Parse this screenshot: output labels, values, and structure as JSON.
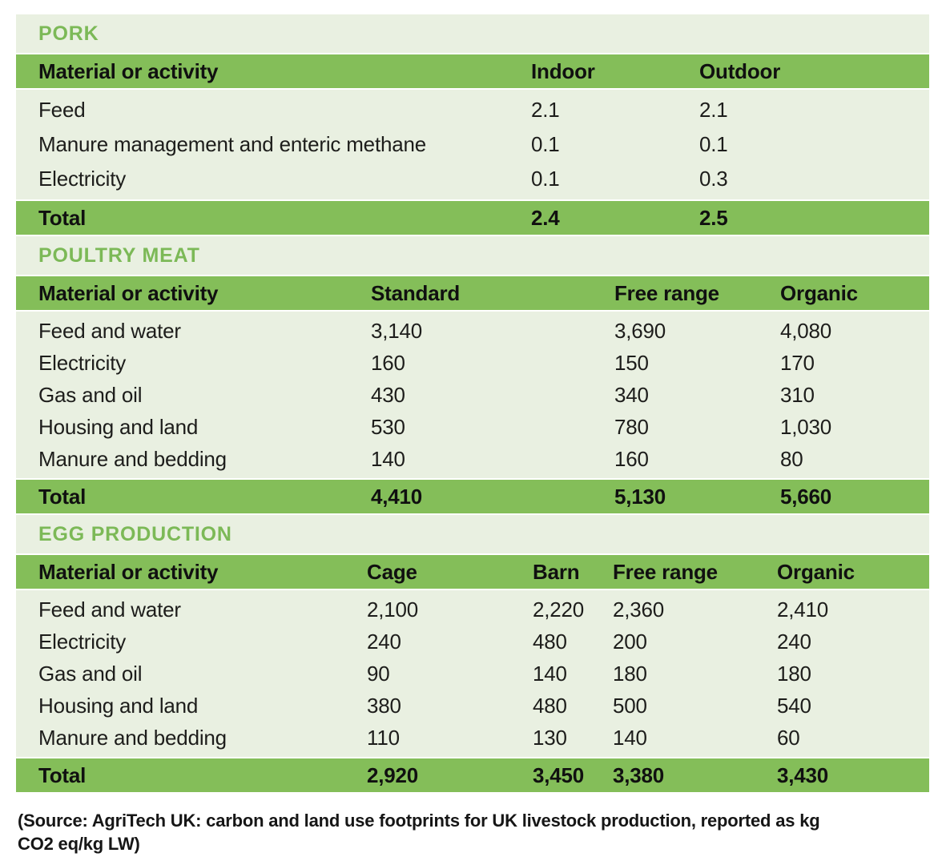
{
  "colors": {
    "band_green": "#84BE59",
    "light_green": "#E9F0E1",
    "title_green": "#7CB957",
    "text_dark": "#1d1d1b"
  },
  "sections": [
    {
      "title": "PORK",
      "columns": [
        "Material or activity",
        "Indoor",
        "Outdoor"
      ],
      "rows": [
        {
          "label": "Feed",
          "values": [
            "2.1",
            "2.1"
          ]
        },
        {
          "label": "Manure management and enteric methane",
          "values": [
            "0.1",
            "0.1"
          ]
        },
        {
          "label": "Electricity",
          "values": [
            "0.1",
            "0.3"
          ]
        }
      ],
      "total": {
        "label": "Total",
        "values": [
          "2.4",
          "2.5"
        ]
      }
    },
    {
      "title": "POULTRY MEAT",
      "columns": [
        "Material or activity",
        "Standard",
        "Free range",
        "Organic"
      ],
      "rows": [
        {
          "label": "Feed and water",
          "values": [
            "3,140",
            "3,690",
            "4,080"
          ]
        },
        {
          "label": "Electricity",
          "values": [
            "160",
            "150",
            "170"
          ]
        },
        {
          "label": "Gas and oil",
          "values": [
            "430",
            "340",
            "310"
          ]
        },
        {
          "label": "Housing and land",
          "values": [
            "530",
            "780",
            "1,030"
          ]
        },
        {
          "label": "Manure and bedding",
          "values": [
            "140",
            "160",
            "80"
          ]
        }
      ],
      "total": {
        "label": "Total",
        "values": [
          "4,410",
          "5,130",
          "5,660"
        ]
      }
    },
    {
      "title": "EGG PRODUCTION",
      "columns": [
        "Material or activity",
        "Cage",
        "Barn",
        "Free range",
        "Organic"
      ],
      "rows": [
        {
          "label": "Feed and water",
          "values": [
            "2,100",
            "2,220",
            "2,360",
            "2,410"
          ]
        },
        {
          "label": "Electricity",
          "values": [
            "240",
            "480",
            "200",
            "240"
          ]
        },
        {
          "label": "Gas and oil",
          "values": [
            "90",
            "140",
            "180",
            "180"
          ]
        },
        {
          "label": "Housing and land",
          "values": [
            "380",
            "480",
            "500",
            "540"
          ]
        },
        {
          "label": "Manure and bedding",
          "values": [
            "110",
            "130",
            "140",
            "60"
          ]
        }
      ],
      "total": {
        "label": "Total",
        "values": [
          "2,920",
          "3,450",
          "3,380",
          "3,430"
        ]
      }
    }
  ],
  "source_note": "(Source: AgriTech UK: carbon and land use footprints for UK livestock production, reported as kg CO2 eq/kg LW)",
  "chart_data": [
    {
      "type": "table",
      "title": "PORK",
      "units": "kg CO2 eq/kg LW",
      "columns": [
        "Material or activity",
        "Indoor",
        "Outdoor"
      ],
      "rows": [
        [
          "Feed",
          2.1,
          2.1
        ],
        [
          "Manure management and enteric methane",
          0.1,
          0.1
        ],
        [
          "Electricity",
          0.1,
          0.3
        ],
        [
          "Total",
          2.4,
          2.5
        ]
      ]
    },
    {
      "type": "table",
      "title": "POULTRY MEAT",
      "units": "kg CO2 eq/kg LW",
      "columns": [
        "Material or activity",
        "Standard",
        "Free range",
        "Organic"
      ],
      "rows": [
        [
          "Feed and water",
          3140,
          3690,
          4080
        ],
        [
          "Electricity",
          160,
          150,
          170
        ],
        [
          "Gas and oil",
          430,
          340,
          310
        ],
        [
          "Housing and land",
          530,
          780,
          1030
        ],
        [
          "Manure and bedding",
          140,
          160,
          80
        ],
        [
          "Total",
          4410,
          5130,
          5660
        ]
      ]
    },
    {
      "type": "table",
      "title": "EGG PRODUCTION",
      "units": "kg CO2 eq/kg LW",
      "columns": [
        "Material or activity",
        "Cage",
        "Barn",
        "Free range",
        "Organic"
      ],
      "rows": [
        [
          "Feed and water",
          2100,
          2220,
          2360,
          2410
        ],
        [
          "Electricity",
          240,
          480,
          200,
          240
        ],
        [
          "Gas and oil",
          90,
          140,
          180,
          180
        ],
        [
          "Housing and land",
          380,
          480,
          500,
          540
        ],
        [
          "Manure and bedding",
          110,
          130,
          140,
          60
        ],
        [
          "Total",
          2920,
          3450,
          3380,
          3430
        ]
      ]
    }
  ]
}
